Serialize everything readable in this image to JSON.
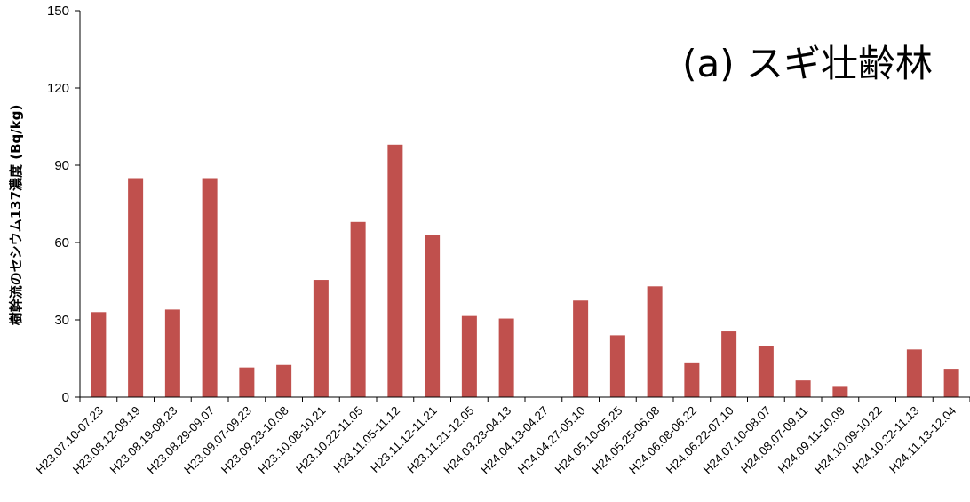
{
  "chart_data": {
    "type": "bar",
    "title": "(a) スギ壮齢林",
    "xlabel": "",
    "ylabel": "樹幹流のセシウム137濃度 (Bq/kg)",
    "ylim": [
      0,
      150
    ],
    "yticks": [
      0,
      30,
      60,
      90,
      120,
      150
    ],
    "grid": false,
    "bar_color": "#c0504d",
    "categories": [
      "H23.07.10-07.23",
      "H23.08.12-08.19",
      "H23.08.19-08.23",
      "H23.08.29-09.07",
      "H23.09.07-09.23",
      "H23.09.23-10.08",
      "H23.10.08-10.21",
      "H23.10.22-11.05",
      "H23.11.05-11.12",
      "H23.11.12-11.21",
      "H23.11.21-12.05",
      "H24.03.23-04.13",
      "H24.04.13-04.27",
      "H24.04.27-05.10",
      "H24.05.10-05.25",
      "H24.05.25-06.08",
      "H24.06.08-06.22",
      "H24.06.22-07.10",
      "H24.07.10-08.07",
      "H24.08.07-09.11",
      "H24.09.11-10.09",
      "H24.10.09-10.22",
      "H24.10.22-11.13",
      "H24.11.13-12.04"
    ],
    "values": [
      33,
      85,
      34,
      85,
      11.5,
      12.5,
      45.5,
      68,
      98,
      63,
      31.5,
      30.5,
      0,
      37.5,
      24,
      43,
      13.5,
      25.5,
      20,
      6.5,
      4,
      0,
      18.5,
      11
    ]
  }
}
